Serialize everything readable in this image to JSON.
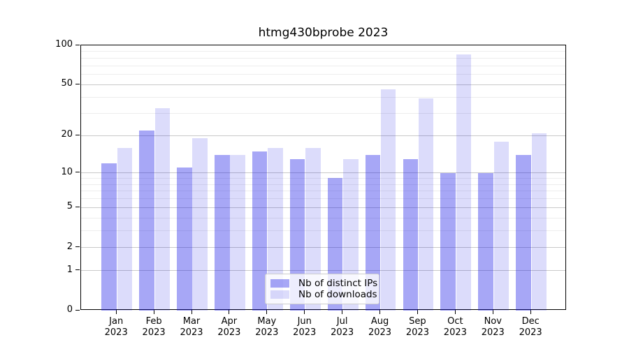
{
  "title": "htmg430bprobe 2023",
  "chart_data": {
    "type": "bar",
    "title": "htmg430bprobe 2023",
    "categories": [
      "Jan",
      "Feb",
      "Mar",
      "Apr",
      "May",
      "Jun",
      "Jul",
      "Aug",
      "Sep",
      "Oct",
      "Nov",
      "Dec"
    ],
    "year_label": "2023",
    "series": [
      {
        "name": "Nb of distinct IPs",
        "color": "rgba(15,15,230,0.37)",
        "values": [
          12,
          22,
          11,
          14,
          15,
          13,
          9,
          14,
          13,
          10,
          10,
          14
        ]
      },
      {
        "name": "Nb of downloads",
        "color": "rgba(15,15,230,0.145)",
        "values": [
          16,
          33,
          19,
          14,
          16,
          16,
          13,
          46,
          39,
          85,
          18,
          21
        ]
      }
    ],
    "yscale": "log1p",
    "ylim": [
      0,
      100
    ],
    "yticks_major": [
      100,
      50,
      20,
      10,
      5,
      2,
      1,
      0
    ],
    "yticks_minor": [
      3,
      4,
      6,
      7,
      8,
      9,
      30,
      40,
      60,
      70,
      80,
      90
    ],
    "grid": true,
    "legend_position": "lower center",
    "colors": {
      "grid_major": "#c9c9c9",
      "grid_minor": "#ededed",
      "axis": "#000000",
      "background": "#ffffff"
    }
  }
}
